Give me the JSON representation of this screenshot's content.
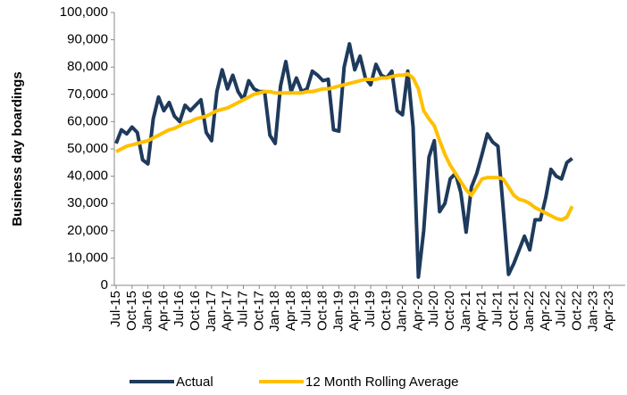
{
  "chart_data": {
    "type": "line",
    "y_label": "Business day boardings",
    "categories": [
      "Jul-15",
      null,
      null,
      "Oct-15",
      null,
      null,
      "Jan-16",
      null,
      null,
      "Apr-16",
      null,
      null,
      "Jul-16",
      null,
      null,
      "Oct-16",
      null,
      null,
      "Jan-17",
      null,
      null,
      "Apr-17",
      null,
      null,
      "Jul-17",
      null,
      null,
      "Oct-17",
      null,
      null,
      "Jan-18",
      null,
      null,
      "Apr-18",
      null,
      null,
      "Jul-18",
      null,
      null,
      "Oct-18",
      null,
      null,
      "Jan-19",
      null,
      null,
      "Apr-19",
      null,
      null,
      "Jul-19",
      null,
      null,
      "Oct-19",
      null,
      null,
      "Jan-20",
      null,
      null,
      "Apr-20",
      null,
      null,
      "Jul-20",
      null,
      null,
      "Oct-20",
      null,
      null,
      "Jan-21",
      null,
      null,
      "Apr-21",
      null,
      null,
      "Jul-21",
      null,
      null,
      "Oct-21",
      null,
      null,
      "Jan-22",
      null,
      null,
      "Apr-22",
      null,
      null,
      "Jul-22",
      null,
      null,
      "Oct-22",
      null,
      null,
      "Jan-23",
      null,
      null,
      "Apr-23",
      null,
      null
    ],
    "series": [
      {
        "name": "Actual",
        "color": "#1e3a5c",
        "values": [
          52000,
          57000,
          55500,
          58000,
          56000,
          46000,
          44500,
          61000,
          69000,
          64000,
          67000,
          62000,
          60000,
          66000,
          64000,
          66000,
          68000,
          56000,
          53000,
          71000,
          79000,
          72000,
          77000,
          71000,
          68000,
          75000,
          72000,
          71000,
          71000,
          55000,
          52000,
          73000,
          82000,
          71000,
          76000,
          71000,
          72000,
          78500,
          77000,
          75000,
          75500,
          57000,
          56500,
          80000,
          88500,
          79000,
          84000,
          76000,
          73500,
          81000,
          77000,
          76000,
          78500,
          64000,
          62500,
          78500,
          58000,
          3000,
          20000,
          47000,
          53000,
          27000,
          30000,
          39000,
          41000,
          34000,
          19500,
          36000,
          41000,
          48000,
          55500,
          52500,
          51000,
          28000,
          4000,
          8000,
          13000,
          18000,
          13000,
          24000,
          24000,
          32000,
          42500,
          40000,
          39000,
          45000,
          46500,
          null,
          null,
          null,
          null,
          null,
          null,
          null,
          null,
          null
        ]
      },
      {
        "name": "12 Month Rolling Average",
        "color": "#ffc000",
        "values": [
          49000,
          50000,
          51000,
          51500,
          52000,
          52500,
          53000,
          54000,
          55000,
          56000,
          57000,
          57500,
          58500,
          59500,
          60000,
          61000,
          61500,
          62000,
          63000,
          64000,
          64500,
          65000,
          66000,
          67000,
          68000,
          69000,
          70000,
          70500,
          71000,
          71000,
          70500,
          70500,
          70500,
          70500,
          70500,
          70500,
          71000,
          71000,
          71500,
          72000,
          72000,
          72500,
          73000,
          73500,
          74000,
          74500,
          75000,
          75500,
          75500,
          75500,
          76000,
          76000,
          76500,
          77000,
          77000,
          77500,
          76000,
          72000,
          64000,
          61000,
          58500,
          53000,
          48000,
          44000,
          41000,
          38000,
          35000,
          33000,
          36000,
          39000,
          39500,
          39500,
          39500,
          39000,
          36000,
          33000,
          31500,
          31000,
          30000,
          28500,
          27500,
          26500,
          25500,
          24500,
          24000,
          25000,
          29000,
          null,
          null,
          null,
          null,
          null,
          null,
          null,
          null,
          null
        ]
      }
    ],
    "ylim": [
      0,
      100000
    ],
    "yticks": [
      0,
      {
        "value": 10000,
        "label": "10,000"
      },
      {
        "value": 20000,
        "label": "20,000"
      },
      {
        "value": 30000,
        "label": "30,000"
      },
      {
        "value": 40000,
        "label": "40,000"
      },
      {
        "value": 50000,
        "label": "50,000"
      },
      {
        "value": 60000,
        "label": "60,000"
      },
      {
        "value": 70000,
        "label": "70,000"
      },
      {
        "value": 80000,
        "label": "80,000"
      },
      {
        "value": 90000,
        "label": "90,000"
      },
      {
        "value": 100000,
        "label": "100,000"
      }
    ],
    "grid": false,
    "legend": "bottom"
  }
}
